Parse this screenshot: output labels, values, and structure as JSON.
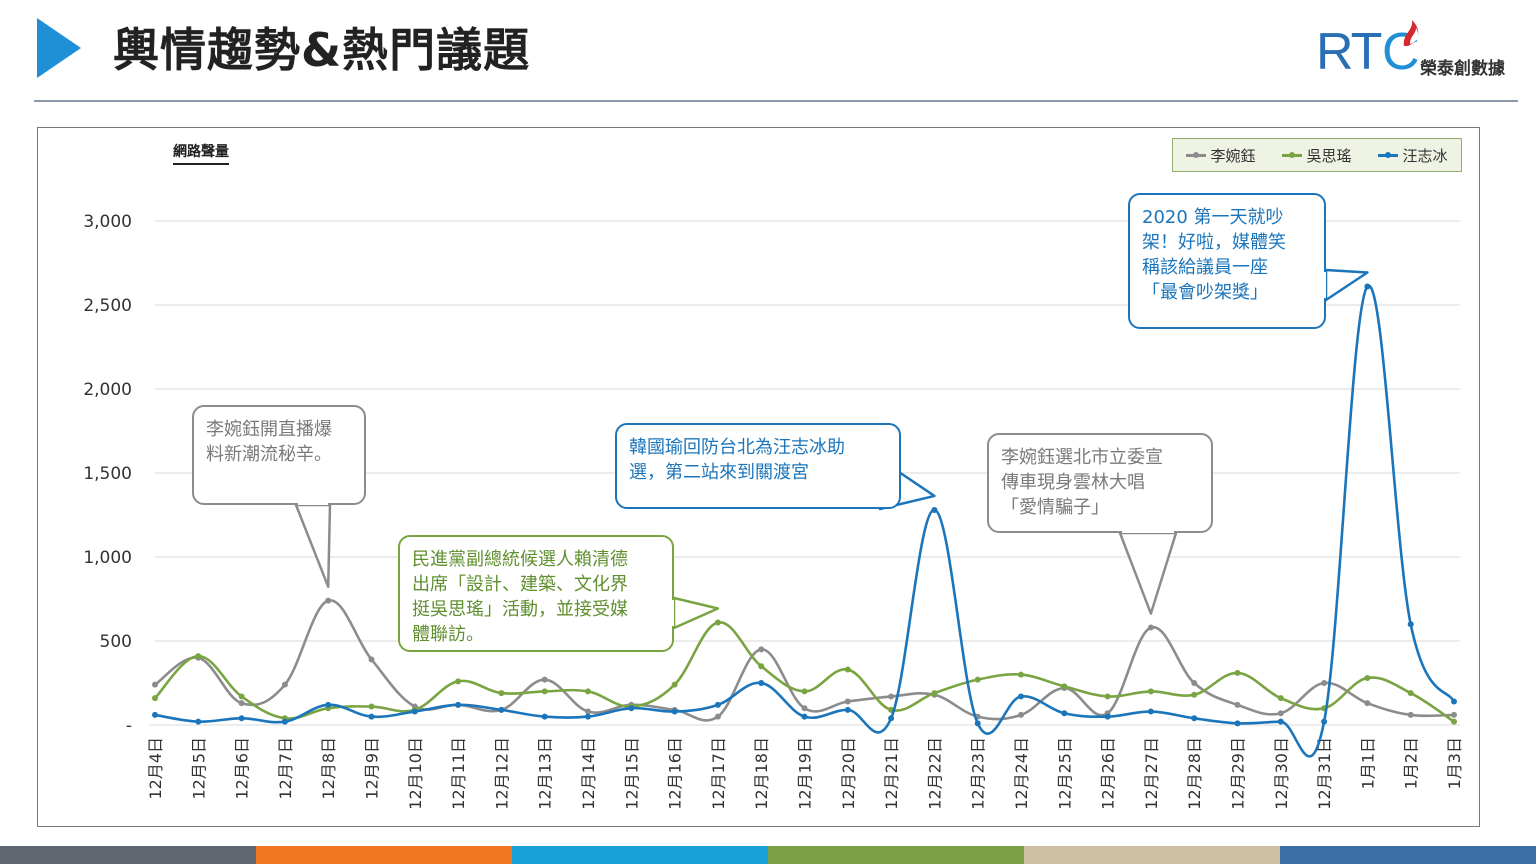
{
  "slide": {
    "title": "輿情趨勢&熱門議題",
    "logo": {
      "mark": "RTC",
      "text": "榮泰創數據"
    }
  },
  "colors": {
    "accent": "#1f8fd6",
    "gray_series": "#8c8c8c",
    "green_series": "#79a442",
    "blue_series": "#1b75bb",
    "bottom_bar": [
      "#5f6670",
      "#f07622",
      "#18a0d8",
      "#7aa046",
      "#cdbfa4",
      "#3a6ea5"
    ]
  },
  "chart_data": {
    "type": "line",
    "title": "",
    "ylabel": "網路聲量",
    "xlabel": "",
    "ylim": [
      0,
      3000
    ],
    "yticks": [
      0,
      500,
      1000,
      1500,
      2000,
      2500,
      3000
    ],
    "ytick_labels": [
      "-",
      "500",
      "1,000",
      "1,500",
      "2,000",
      "2,500",
      "3,000"
    ],
    "grid": true,
    "legend_position": "top-right",
    "categories": [
      "12月4日",
      "12月5日",
      "12月6日",
      "12月7日",
      "12月8日",
      "12月9日",
      "12月10日",
      "12月11日",
      "12月12日",
      "12月13日",
      "12月14日",
      "12月15日",
      "12月16日",
      "12月17日",
      "12月18日",
      "12月19日",
      "12月20日",
      "12月21日",
      "12月22日",
      "12月23日",
      "12月24日",
      "12月25日",
      "12月26日",
      "12月27日",
      "12月28日",
      "12月29日",
      "12月30日",
      "12月31日",
      "1月1日",
      "1月2日",
      "1月3日"
    ],
    "series": [
      {
        "name": "李婉鈺",
        "color": "#8c8c8c",
        "values": [
          240,
          400,
          130,
          240,
          740,
          390,
          110,
          120,
          90,
          270,
          80,
          120,
          90,
          50,
          450,
          100,
          140,
          170,
          180,
          50,
          60,
          220,
          70,
          580,
          250,
          120,
          70,
          250,
          130,
          60,
          60
        ]
      },
      {
        "name": "吳思瑤",
        "color": "#79a442",
        "values": [
          160,
          410,
          170,
          40,
          100,
          110,
          90,
          260,
          190,
          200,
          200,
          110,
          240,
          610,
          350,
          200,
          330,
          90,
          190,
          270,
          300,
          230,
          170,
          200,
          180,
          310,
          160,
          100,
          280,
          190,
          20
        ]
      },
      {
        "name": "汪志冰",
        "color": "#1b75bb",
        "values": [
          60,
          20,
          40,
          20,
          120,
          50,
          80,
          120,
          90,
          50,
          50,
          100,
          80,
          120,
          250,
          50,
          90,
          40,
          1280,
          10,
          170,
          70,
          50,
          80,
          40,
          10,
          20,
          20,
          2610,
          600,
          140
        ]
      }
    ],
    "annotations": [
      {
        "id": "ann1",
        "series": "李婉鈺",
        "index": 4,
        "lines": [
          "李婉鈺開直播爆",
          "料新潮流秘辛。"
        ]
      },
      {
        "id": "ann2",
        "series": "吳思瑤",
        "index": 13,
        "lines": [
          "民進黨副總統候選人賴清德",
          "出席「設計、建築、文化界",
          "挺吳思瑤」活動，並接受媒",
          "體聯訪。"
        ]
      },
      {
        "id": "ann3",
        "series": "汪志冰",
        "index": 18,
        "lines": [
          "韓國瑜回防台北為汪志冰助",
          "選，第二站來到關渡宮"
        ]
      },
      {
        "id": "ann4",
        "series": "李婉鈺",
        "index": 23,
        "lines": [
          "李婉鈺選北市立委宣",
          "傳車現身雲林大唱",
          "「愛情騙子」"
        ]
      },
      {
        "id": "ann5",
        "series": "汪志冰",
        "index": 28,
        "lines": [
          "2020 第一天就吵",
          "架！好啦，媒體笑",
          "稱該給議員一座",
          "「最會吵架獎」"
        ]
      }
    ]
  }
}
